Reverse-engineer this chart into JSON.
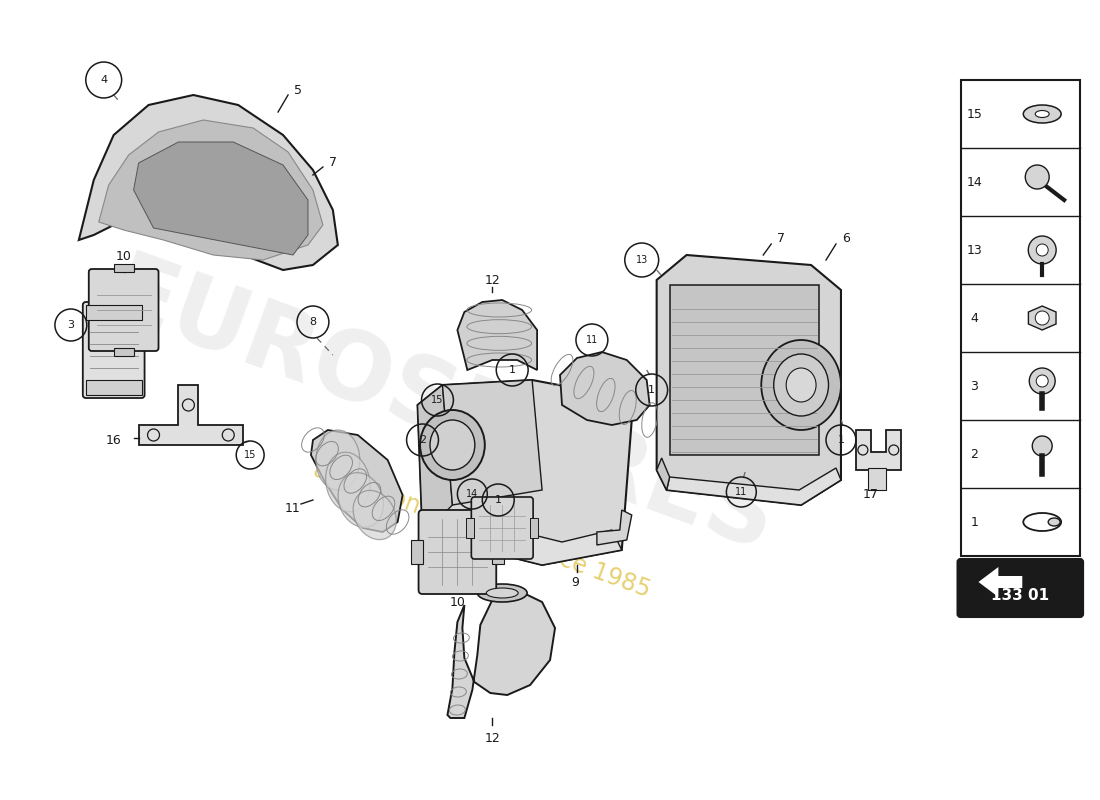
{
  "diagram_number": "133 01",
  "background_color": "#ffffff",
  "line_color": "#1a1a1a",
  "watermark_color": "#cccccc",
  "watermark_alpha": 0.3,
  "tagline_color": "#d4aa00",
  "tagline_alpha": 0.55,
  "legend_items": [
    {
      "num": "15",
      "type": "washer"
    },
    {
      "num": "14",
      "type": "screw_key"
    },
    {
      "num": "13",
      "type": "rivet"
    },
    {
      "num": "4",
      "type": "nut"
    },
    {
      "num": "3",
      "type": "bolt_socket"
    },
    {
      "num": "2",
      "type": "bolt"
    },
    {
      "num": "1",
      "type": "clamp_ring"
    }
  ]
}
